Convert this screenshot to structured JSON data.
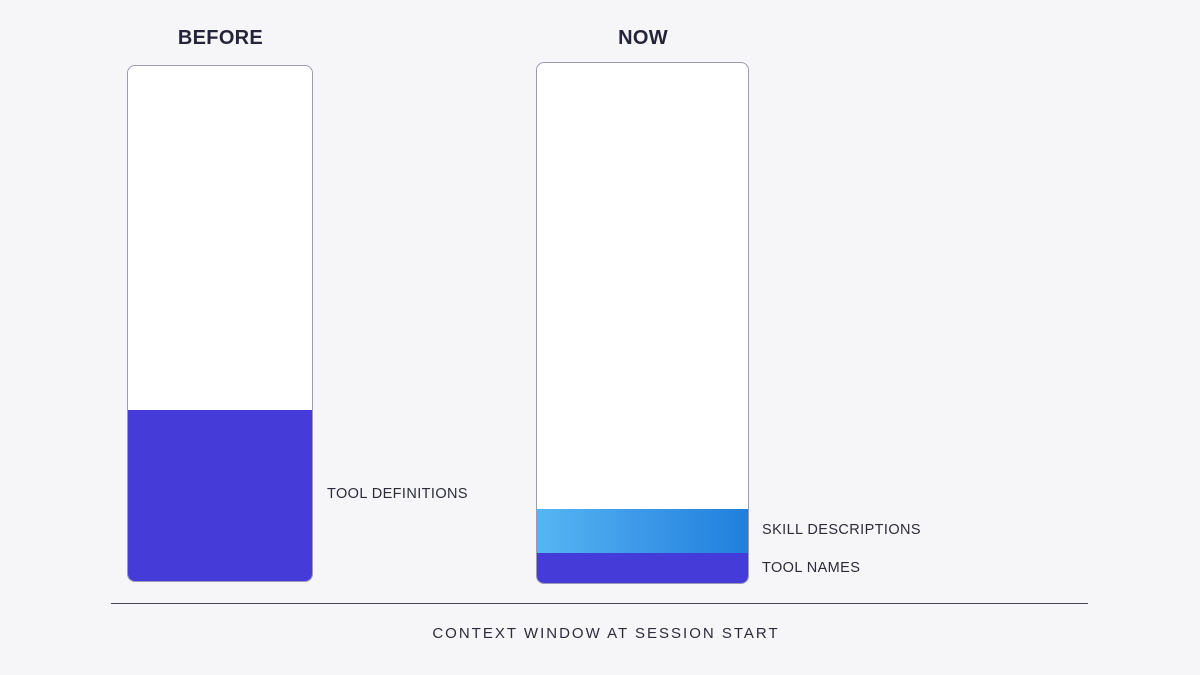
{
  "columns": [
    {
      "title": "BEFORE",
      "segments": [
        {
          "label": "TOOL DEFINITIONS",
          "fraction": 0.333,
          "color": "#443bd8"
        }
      ]
    },
    {
      "title": "NOW",
      "segments": [
        {
          "label": "TOOL NAMES",
          "fraction": 0.057,
          "color": "#443bd8"
        },
        {
          "label": "SKILL DESCRIPTIONS",
          "fraction": 0.084,
          "color": "#3f9be9"
        }
      ]
    }
  ],
  "caption": "CONTEXT WINDOW AT SESSION START"
}
